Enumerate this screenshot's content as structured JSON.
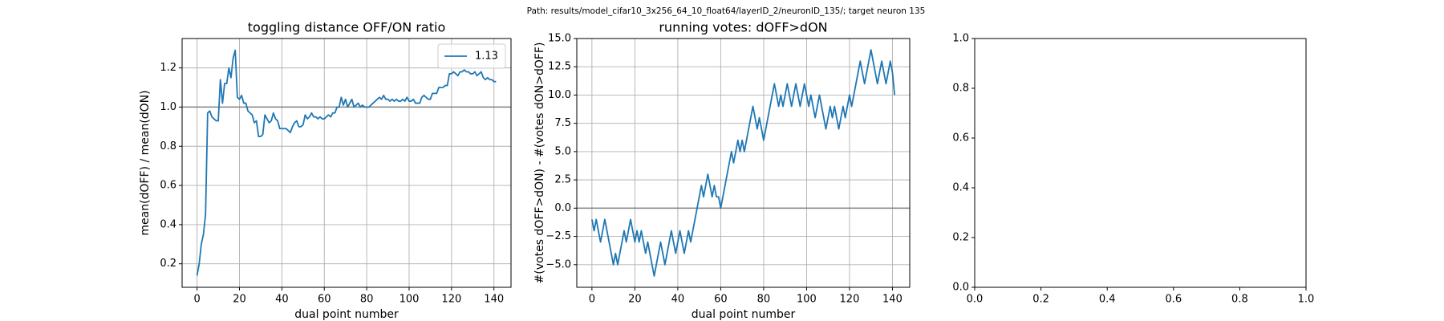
{
  "title": "Path: results/model_cifar10_3x256_64_10_float64/layerID_2/neuronID_135/; target neuron 135",
  "chart_data": [
    {
      "type": "line",
      "title": "toggling distance OFF/ON ratio",
      "xlabel": "dual point number",
      "ylabel": "mean(dOFF) / mean(dON)",
      "x": [
        0,
        1,
        2,
        3,
        4,
        5,
        6,
        7,
        8,
        9,
        10,
        11,
        12,
        13,
        14,
        15,
        16,
        17,
        18,
        19,
        20,
        21,
        22,
        23,
        24,
        25,
        26,
        27,
        28,
        29,
        30,
        31,
        32,
        33,
        34,
        35,
        36,
        37,
        38,
        39,
        40,
        41,
        42,
        43,
        44,
        45,
        46,
        47,
        48,
        49,
        50,
        51,
        52,
        53,
        54,
        55,
        56,
        57,
        58,
        59,
        60,
        61,
        62,
        63,
        64,
        65,
        66,
        67,
        68,
        69,
        70,
        71,
        72,
        73,
        74,
        75,
        76,
        77,
        78,
        79,
        80,
        81,
        82,
        83,
        84,
        85,
        86,
        87,
        88,
        89,
        90,
        91,
        92,
        93,
        94,
        95,
        96,
        97,
        98,
        99,
        100,
        101,
        102,
        103,
        104,
        105,
        106,
        107,
        108,
        109,
        110,
        111,
        112,
        113,
        114,
        115,
        116,
        117,
        118,
        119,
        120,
        121,
        122,
        123,
        124,
        125,
        126,
        127,
        128,
        129,
        130,
        131,
        132,
        133,
        134,
        135,
        136,
        137,
        138,
        139,
        140,
        141
      ],
      "series": [
        {
          "name": "1.13",
          "color": "#1f77b4",
          "values": [
            0.14,
            0.2,
            0.3,
            0.35,
            0.45,
            0.97,
            0.98,
            0.95,
            0.94,
            0.93,
            0.93,
            1.14,
            1.02,
            1.12,
            1.12,
            1.2,
            1.15,
            1.25,
            1.29,
            1.05,
            1.04,
            1.06,
            1.02,
            1.02,
            0.98,
            0.97,
            0.96,
            0.92,
            0.93,
            0.85,
            0.85,
            0.86,
            0.96,
            0.94,
            0.92,
            0.93,
            0.97,
            0.94,
            0.93,
            0.89,
            0.89,
            0.89,
            0.89,
            0.88,
            0.87,
            0.9,
            0.92,
            0.93,
            0.9,
            0.9,
            0.91,
            0.96,
            0.94,
            0.95,
            0.97,
            0.95,
            0.95,
            0.94,
            0.95,
            0.94,
            0.94,
            0.95,
            0.96,
            0.95,
            0.97,
            0.97,
            1.0,
            1.0,
            1.05,
            1.01,
            1.04,
            1.0,
            1.02,
            1.04,
            1.0,
            1.01,
            1.02,
            1.0,
            1.01,
            1.0,
            1.0,
            1.0,
            1.01,
            1.02,
            1.03,
            1.04,
            1.05,
            1.04,
            1.06,
            1.04,
            1.04,
            1.03,
            1.04,
            1.03,
            1.04,
            1.03,
            1.03,
            1.04,
            1.03,
            1.05,
            1.03,
            1.03,
            1.04,
            1.02,
            1.02,
            1.02,
            1.05,
            1.06,
            1.05,
            1.04,
            1.04,
            1.07,
            1.07,
            1.07,
            1.1,
            1.1,
            1.1,
            1.11,
            1.11,
            1.17,
            1.17,
            1.18,
            1.17,
            1.16,
            1.18,
            1.18,
            1.19,
            1.18,
            1.18,
            1.17,
            1.17,
            1.18,
            1.16,
            1.17,
            1.18,
            1.15,
            1.14,
            1.15,
            1.14,
            1.14,
            1.13,
            1.13
          ]
        }
      ],
      "hline": 1.0,
      "hline_color": "#808080",
      "xlim": [
        -7.05,
        148.05
      ],
      "xticks": [
        0,
        20,
        40,
        60,
        80,
        100,
        120,
        140
      ],
      "ylim": [
        0.08,
        1.35
      ],
      "yticks": [
        0.2,
        0.4,
        0.6,
        0.8,
        {
          "value": 1.0,
          "label": "1.0"
        },
        1.2
      ],
      "grid": true,
      "legend": "upper right"
    },
    {
      "type": "line",
      "title": "running votes: dOFF>dON",
      "xlabel": "dual point number",
      "ylabel": "#(votes dOFF>dON) - #(votes dON>dOFF)",
      "x": [
        0,
        1,
        2,
        3,
        4,
        5,
        6,
        7,
        8,
        9,
        10,
        11,
        12,
        13,
        14,
        15,
        16,
        17,
        18,
        19,
        20,
        21,
        22,
        23,
        24,
        25,
        26,
        27,
        28,
        29,
        30,
        31,
        32,
        33,
        34,
        35,
        36,
        37,
        38,
        39,
        40,
        41,
        42,
        43,
        44,
        45,
        46,
        47,
        48,
        49,
        50,
        51,
        52,
        53,
        54,
        55,
        56,
        57,
        58,
        59,
        60,
        61,
        62,
        63,
        64,
        65,
        66,
        67,
        68,
        69,
        70,
        71,
        72,
        73,
        74,
        75,
        76,
        77,
        78,
        79,
        80,
        81,
        82,
        83,
        84,
        85,
        86,
        87,
        88,
        89,
        90,
        91,
        92,
        93,
        94,
        95,
        96,
        97,
        98,
        99,
        100,
        101,
        102,
        103,
        104,
        105,
        106,
        107,
        108,
        109,
        110,
        111,
        112,
        113,
        114,
        115,
        116,
        117,
        118,
        119,
        120,
        121,
        122,
        123,
        124,
        125,
        126,
        127,
        128,
        129,
        130,
        131,
        132,
        133,
        134,
        135,
        136,
        137,
        138,
        139,
        140,
        141
      ],
      "series": [
        {
          "color": "#1f77b4",
          "values": [
            -1,
            -2,
            -1,
            -2,
            -3,
            -2,
            -1,
            -2,
            -3,
            -4,
            -5,
            -4,
            -5,
            -4,
            -3,
            -2,
            -3,
            -2,
            -1,
            -2,
            -3,
            -2,
            -3,
            -2,
            -3,
            -4,
            -3,
            -4,
            -5,
            -6,
            -5,
            -4,
            -3,
            -4,
            -5,
            -4,
            -3,
            -2,
            -3,
            -4,
            -3,
            -2,
            -3,
            -4,
            -3,
            -2,
            -3,
            -2,
            -1,
            0,
            1,
            2,
            1,
            2,
            3,
            2,
            1,
            2,
            1,
            1,
            0,
            1,
            2,
            3,
            4,
            5,
            4,
            5,
            6,
            5,
            6,
            5,
            6,
            7,
            8,
            9,
            8,
            7,
            8,
            7,
            6,
            7,
            8,
            9,
            10,
            11,
            10,
            9,
            10,
            9,
            10,
            11,
            10,
            9,
            10,
            11,
            10,
            9,
            10,
            11,
            10,
            9,
            10,
            9,
            8,
            9,
            10,
            9,
            8,
            7,
            8,
            9,
            8,
            9,
            8,
            7,
            8,
            9,
            8,
            9,
            10,
            9,
            10,
            11,
            12,
            13,
            12,
            11,
            12,
            13,
            14,
            13,
            12,
            11,
            12,
            13,
            12,
            11,
            12,
            13,
            12,
            10
          ]
        }
      ],
      "hline": 0,
      "hline_color": "#808080",
      "xlim": [
        -7.05,
        148.05
      ],
      "xticks": [
        0,
        20,
        40,
        60,
        80,
        100,
        120,
        140
      ],
      "ylim": [
        -7,
        15
      ],
      "yticks": [
        {
          "value": -5,
          "label": "−5.0"
        },
        {
          "value": -2.5,
          "label": "−2.5"
        },
        {
          "value": 0,
          "label": "0.0"
        },
        2.5,
        {
          "value": 5,
          "label": "5.0"
        },
        7.5,
        {
          "value": 10,
          "label": "10.0"
        },
        12.5,
        {
          "value": 15,
          "label": "15.0"
        }
      ],
      "grid": true
    },
    {
      "type": "line",
      "series": [],
      "xlim": [
        0,
        1
      ],
      "xticks": [
        {
          "value": 0,
          "label": "0.0"
        },
        0.2,
        0.4,
        0.6,
        0.8,
        {
          "value": 1,
          "label": "1.0"
        }
      ],
      "ylim": [
        0,
        1
      ],
      "yticks": [
        {
          "value": 0,
          "label": "0.0"
        },
        0.2,
        0.4,
        0.6,
        0.8,
        {
          "value": 1,
          "label": "1.0"
        }
      ],
      "grid": false
    }
  ]
}
